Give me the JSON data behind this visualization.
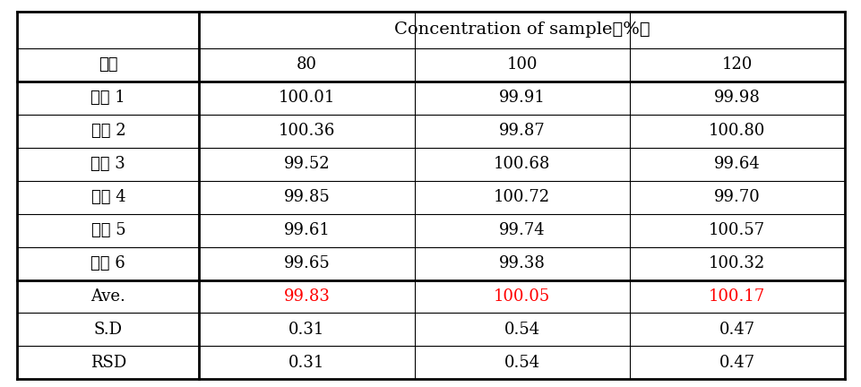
{
  "header_top": "Concentration of sample（%）",
  "col_header": "농도",
  "columns": [
    "80",
    "100",
    "120"
  ],
  "rows": [
    [
      "검액 1",
      "100.01",
      "99.91",
      "99.98"
    ],
    [
      "검액 2",
      "100.36",
      "99.87",
      "100.80"
    ],
    [
      "검액 3",
      "99.52",
      "100.68",
      "99.64"
    ],
    [
      "검액 4",
      "99.85",
      "100.72",
      "99.70"
    ],
    [
      "검액 5",
      "99.61",
      "99.74",
      "100.57"
    ],
    [
      "검액 6",
      "99.65",
      "99.38",
      "100.32"
    ]
  ],
  "summary_rows": [
    [
      "Ave.",
      "99.83",
      "100.05",
      "100.17"
    ],
    [
      "S.D",
      "0.31",
      "0.54",
      "0.47"
    ],
    [
      "RSD",
      "0.31",
      "0.54",
      "0.47"
    ]
  ],
  "ave_color": "#ff0000",
  "normal_color": "#000000",
  "bg_color": "#ffffff",
  "font_size": 13,
  "header_font_size": 14
}
